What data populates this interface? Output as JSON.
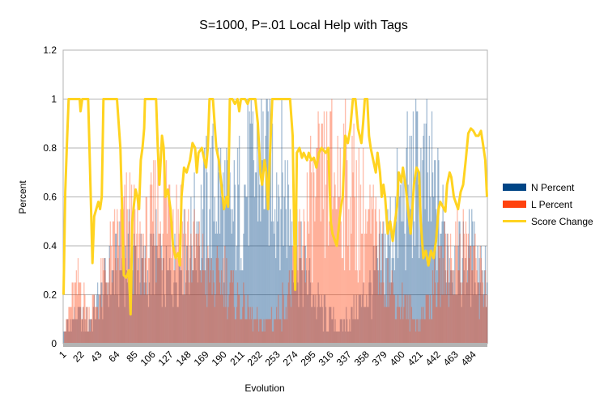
{
  "chart_data": {
    "type": "bar",
    "title": "S=1000, P=.01 Local Help with Tags",
    "xlabel": "Evolution",
    "ylabel": "Percent",
    "ylim": [
      0,
      1.2
    ],
    "yticks": [
      0,
      0.2,
      0.4,
      0.6,
      0.8,
      1,
      1.2
    ],
    "ytick_labels": [
      "0",
      "0.2",
      "0.4",
      "0.6",
      "0.8",
      "1",
      "1.2"
    ],
    "x_range": [
      1,
      500
    ],
    "xtick_labels": [
      "1",
      "22",
      "43",
      "64",
      "85",
      "106",
      "127",
      "148",
      "169",
      "190",
      "211",
      "232",
      "253",
      "274",
      "295",
      "316",
      "337",
      "358",
      "379",
      "400",
      "421",
      "442",
      "463",
      "484"
    ],
    "grid": true,
    "legend_position": "right",
    "series": [
      {
        "name": "N Percent",
        "kind": "bar",
        "color": "#004586",
        "anchors": [
          [
            1,
            0.05
          ],
          [
            10,
            0.1
          ],
          [
            20,
            0.15
          ],
          [
            30,
            0.1
          ],
          [
            40,
            0.2
          ],
          [
            50,
            0.3
          ],
          [
            60,
            0.35
          ],
          [
            70,
            0.4
          ],
          [
            80,
            0.45
          ],
          [
            90,
            0.4
          ],
          [
            100,
            0.35
          ],
          [
            110,
            0.45
          ],
          [
            120,
            0.3
          ],
          [
            130,
            0.35
          ],
          [
            140,
            0.45
          ],
          [
            150,
            0.5
          ],
          [
            160,
            0.6
          ],
          [
            170,
            0.7
          ],
          [
            180,
            0.8
          ],
          [
            190,
            0.7
          ],
          [
            200,
            0.6
          ],
          [
            210,
            0.75
          ],
          [
            220,
            0.85
          ],
          [
            230,
            0.9
          ],
          [
            240,
            0.95
          ],
          [
            250,
            0.9
          ],
          [
            260,
            0.8
          ],
          [
            270,
            0.65
          ],
          [
            280,
            0.4
          ],
          [
            290,
            0.3
          ],
          [
            300,
            0.2
          ],
          [
            310,
            0.15
          ],
          [
            320,
            0.1
          ],
          [
            330,
            0.1
          ],
          [
            340,
            0.15
          ],
          [
            350,
            0.2
          ],
          [
            360,
            0.25
          ],
          [
            370,
            0.35
          ],
          [
            380,
            0.5
          ],
          [
            390,
            0.6
          ],
          [
            400,
            0.7
          ],
          [
            410,
            0.8
          ],
          [
            420,
            0.85
          ],
          [
            430,
            0.8
          ],
          [
            440,
            0.7
          ],
          [
            450,
            0.55
          ],
          [
            460,
            0.45
          ],
          [
            470,
            0.4
          ],
          [
            480,
            0.45
          ],
          [
            490,
            0.4
          ],
          [
            500,
            0.4
          ]
        ]
      },
      {
        "name": "L Percent",
        "kind": "bar",
        "color": "#ff420e",
        "anchors": [
          [
            1,
            0.05
          ],
          [
            10,
            0.2
          ],
          [
            20,
            0.3
          ],
          [
            30,
            0.15
          ],
          [
            40,
            0.2
          ],
          [
            50,
            0.35
          ],
          [
            60,
            0.45
          ],
          [
            70,
            0.55
          ],
          [
            80,
            0.6
          ],
          [
            90,
            0.45
          ],
          [
            100,
            0.5
          ],
          [
            110,
            0.65
          ],
          [
            120,
            0.7
          ],
          [
            130,
            0.75
          ],
          [
            140,
            0.6
          ],
          [
            150,
            0.5
          ],
          [
            160,
            0.45
          ],
          [
            170,
            0.35
          ],
          [
            180,
            0.3
          ],
          [
            190,
            0.35
          ],
          [
            200,
            0.25
          ],
          [
            210,
            0.2
          ],
          [
            220,
            0.15
          ],
          [
            230,
            0.1
          ],
          [
            240,
            0.1
          ],
          [
            250,
            0.15
          ],
          [
            260,
            0.2
          ],
          [
            270,
            0.3
          ],
          [
            280,
            0.5
          ],
          [
            290,
            0.65
          ],
          [
            300,
            0.75
          ],
          [
            310,
            0.8
          ],
          [
            320,
            0.85
          ],
          [
            330,
            0.85
          ],
          [
            340,
            0.75
          ],
          [
            350,
            0.7
          ],
          [
            360,
            0.6
          ],
          [
            370,
            0.5
          ],
          [
            380,
            0.35
          ],
          [
            390,
            0.25
          ],
          [
            400,
            0.2
          ],
          [
            410,
            0.15
          ],
          [
            420,
            0.1
          ],
          [
            430,
            0.2
          ],
          [
            440,
            0.3
          ],
          [
            450,
            0.4
          ],
          [
            460,
            0.45
          ],
          [
            470,
            0.5
          ],
          [
            480,
            0.45
          ],
          [
            490,
            0.35
          ],
          [
            500,
            0.3
          ]
        ]
      },
      {
        "name": "Score Change",
        "kind": "line",
        "color": "#ffd320",
        "points": [
          [
            1,
            0.2
          ],
          [
            3,
            0.62
          ],
          [
            5,
            0.82
          ],
          [
            7,
            1
          ],
          [
            20,
            1
          ],
          [
            21,
            0.95
          ],
          [
            23,
            1
          ],
          [
            30,
            1
          ],
          [
            33,
            0.6
          ],
          [
            35,
            0.33
          ],
          [
            37,
            0.52
          ],
          [
            42,
            0.58
          ],
          [
            44,
            0.55
          ],
          [
            46,
            0.6
          ],
          [
            48,
            1
          ],
          [
            52,
            1
          ],
          [
            56,
            1
          ],
          [
            60,
            1
          ],
          [
            64,
            1
          ],
          [
            66,
            0.9
          ],
          [
            68,
            0.8
          ],
          [
            70,
            0.55
          ],
          [
            72,
            0.28
          ],
          [
            75,
            0.27
          ],
          [
            78,
            0.3
          ],
          [
            80,
            0.12
          ],
          [
            82,
            0.5
          ],
          [
            84,
            0.57
          ],
          [
            86,
            0.63
          ],
          [
            88,
            0.6
          ],
          [
            90,
            0.55
          ],
          [
            92,
            0.75
          ],
          [
            94,
            0.8
          ],
          [
            96,
            0.88
          ],
          [
            97,
            1
          ],
          [
            105,
            1
          ],
          [
            110,
            1
          ],
          [
            112,
            0.8
          ],
          [
            114,
            0.65
          ],
          [
            117,
            0.85
          ],
          [
            119,
            0.8
          ],
          [
            121,
            0.6
          ],
          [
            124,
            0.63
          ],
          [
            127,
            0.55
          ],
          [
            130,
            0.4
          ],
          [
            133,
            0.35
          ],
          [
            136,
            0.37
          ],
          [
            138,
            0.32
          ],
          [
            140,
            0.6
          ],
          [
            143,
            0.72
          ],
          [
            146,
            0.7
          ],
          [
            150,
            0.75
          ],
          [
            153,
            0.82
          ],
          [
            156,
            0.8
          ],
          [
            158,
            0.7
          ],
          [
            160,
            0.78
          ],
          [
            164,
            0.8
          ],
          [
            167,
            0.75
          ],
          [
            169,
            0.72
          ],
          [
            171,
            0.8
          ],
          [
            173,
            1
          ],
          [
            177,
            1
          ],
          [
            179,
            0.9
          ],
          [
            181,
            0.8
          ],
          [
            184,
            0.75
          ],
          [
            187,
            0.65
          ],
          [
            190,
            0.55
          ],
          [
            193,
            0.6
          ],
          [
            195,
            0.56
          ],
          [
            197,
            1
          ],
          [
            200,
            1
          ],
          [
            203,
            0.98
          ],
          [
            206,
            1
          ],
          [
            208,
            0.95
          ],
          [
            210,
            1
          ],
          [
            212,
            1
          ],
          [
            215,
            1
          ],
          [
            218,
            0.98
          ],
          [
            220,
            1
          ],
          [
            223,
            1
          ],
          [
            227,
            1
          ],
          [
            230,
            0.9
          ],
          [
            233,
            0.7
          ],
          [
            235,
            0.65
          ],
          [
            238,
            0.75
          ],
          [
            240,
            0.7
          ],
          [
            242,
            0.55
          ],
          [
            244,
            0.75
          ],
          [
            247,
            1
          ],
          [
            250,
            1
          ],
          [
            253,
            1
          ],
          [
            256,
            1
          ],
          [
            260,
            1
          ],
          [
            264,
            1
          ],
          [
            268,
            1
          ],
          [
            271,
            0.85
          ],
          [
            274,
            0.22
          ],
          [
            276,
            0.78
          ],
          [
            279,
            0.8
          ],
          [
            282,
            0.76
          ],
          [
            284,
            0.78
          ],
          [
            288,
            0.75
          ],
          [
            290,
            0.78
          ],
          [
            293,
            0.75
          ],
          [
            296,
            0.76
          ],
          [
            299,
            0.72
          ],
          [
            302,
            0.78
          ],
          [
            305,
            0.8
          ],
          [
            310,
            0.78
          ],
          [
            313,
            0.8
          ],
          [
            316,
            0.5
          ],
          [
            318,
            0.45
          ],
          [
            320,
            0.43
          ],
          [
            323,
            0.4
          ],
          [
            326,
            0.5
          ],
          [
            328,
            0.56
          ],
          [
            330,
            0.6
          ],
          [
            333,
            0.85
          ],
          [
            336,
            0.82
          ],
          [
            339,
            0.88
          ],
          [
            342,
            1
          ],
          [
            345,
            1
          ],
          [
            348,
            0.88
          ],
          [
            352,
            0.82
          ],
          [
            354,
            0.9
          ],
          [
            356,
            1
          ],
          [
            359,
            1
          ],
          [
            361,
            0.85
          ],
          [
            363,
            0.8
          ],
          [
            366,
            0.75
          ],
          [
            369,
            0.7
          ],
          [
            371,
            0.78
          ],
          [
            374,
            0.7
          ],
          [
            376,
            0.6
          ],
          [
            378,
            0.65
          ],
          [
            380,
            0.6
          ],
          [
            383,
            0.45
          ],
          [
            386,
            0.5
          ],
          [
            389,
            0.42
          ],
          [
            391,
            0.48
          ],
          [
            394,
            0.56
          ],
          [
            396,
            0.7
          ],
          [
            399,
            0.66
          ],
          [
            401,
            0.72
          ],
          [
            404,
            0.65
          ],
          [
            407,
            0.55
          ],
          [
            410,
            0.45
          ],
          [
            412,
            0.55
          ],
          [
            414,
            0.65
          ],
          [
            417,
            0.72
          ],
          [
            420,
            0.7
          ],
          [
            422,
            0.5
          ],
          [
            425,
            0.35
          ],
          [
            428,
            0.38
          ],
          [
            431,
            0.32
          ],
          [
            434,
            0.38
          ],
          [
            437,
            0.35
          ],
          [
            440,
            0.42
          ],
          [
            443,
            0.55
          ],
          [
            445,
            0.58
          ],
          [
            448,
            0.56
          ],
          [
            451,
            0.54
          ],
          [
            453,
            0.65
          ],
          [
            456,
            0.7
          ],
          [
            458,
            0.68
          ],
          [
            461,
            0.6
          ],
          [
            463,
            0.58
          ],
          [
            466,
            0.55
          ],
          [
            469,
            0.62
          ],
          [
            472,
            0.65
          ],
          [
            475,
            0.75
          ],
          [
            478,
            0.86
          ],
          [
            481,
            0.88
          ],
          [
            484,
            0.87
          ],
          [
            487,
            0.85
          ],
          [
            490,
            0.85
          ],
          [
            493,
            0.87
          ],
          [
            496,
            0.8
          ],
          [
            498,
            0.75
          ],
          [
            500,
            0.6
          ]
        ]
      }
    ]
  },
  "legend": {
    "items": [
      {
        "label": "N Percent",
        "color": "#004586"
      },
      {
        "label": "L Percent",
        "color": "#ff420e"
      },
      {
        "label": "Score Change",
        "color": "#ffd320"
      }
    ]
  }
}
